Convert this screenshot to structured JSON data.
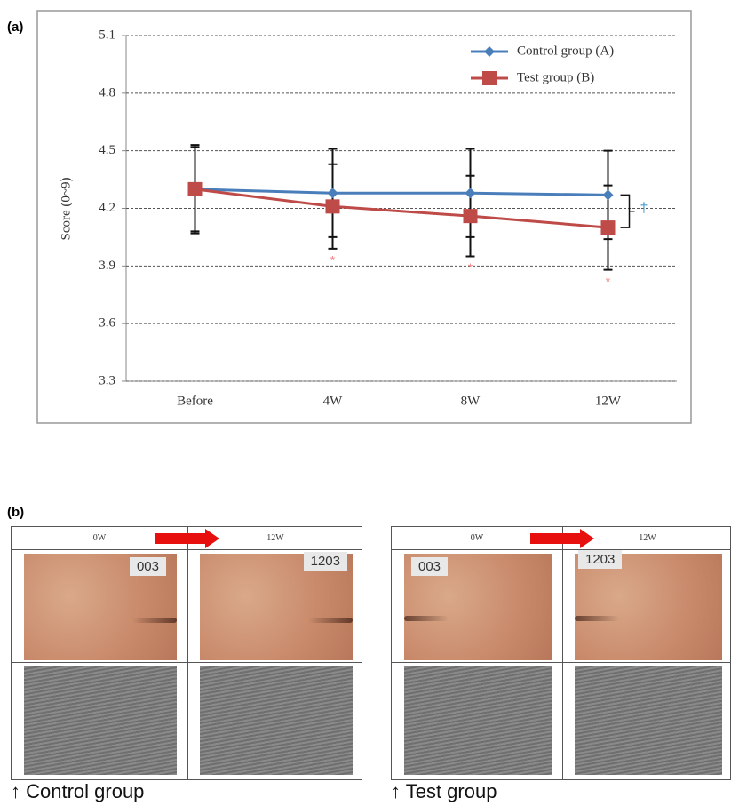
{
  "chart_data": {
    "type": "line",
    "y_label": "Score (0~9)",
    "categories": [
      "Before",
      "4W",
      "8W",
      "12W"
    ],
    "series": [
      {
        "name": "Control group (A)",
        "color": "#4a7ebb",
        "marker": "diamond",
        "values": [
          4.3,
          4.28,
          4.28,
          4.27
        ],
        "errors": [
          0.22,
          0.23,
          0.23,
          0.23
        ]
      },
      {
        "name": "Test group (B)",
        "color": "#be4b48",
        "marker": "square",
        "values": [
          4.3,
          4.21,
          4.16,
          4.1
        ],
        "errors": [
          0.23,
          0.22,
          0.21,
          0.22
        ]
      }
    ],
    "ylim": [
      3.3,
      5.1
    ],
    "yticks": [
      3.3,
      3.6,
      3.9,
      4.2,
      4.5,
      4.8,
      5.1
    ],
    "grid": true,
    "annotations": [
      {
        "text": "*",
        "category": "4W",
        "color": "#f08080"
      },
      {
        "text": "*",
        "category": "8W",
        "color": "#f08080"
      },
      {
        "text": "*",
        "category": "12W",
        "color": "#f08080"
      },
      {
        "text": "†",
        "category": "12W",
        "color": "#4a9bd0"
      }
    ]
  },
  "panel_labels": [
    "(a)",
    "(b)"
  ],
  "panel_b": {
    "groups": [
      {
        "header": [
          "0W",
          "12W"
        ],
        "photo_tags": [
          "003",
          "1203"
        ],
        "caption": "↑ Control group"
      },
      {
        "header": [
          "0W",
          "12W"
        ],
        "photo_tags": [
          "003",
          "1203"
        ],
        "caption": "↑ Test group"
      }
    ]
  }
}
